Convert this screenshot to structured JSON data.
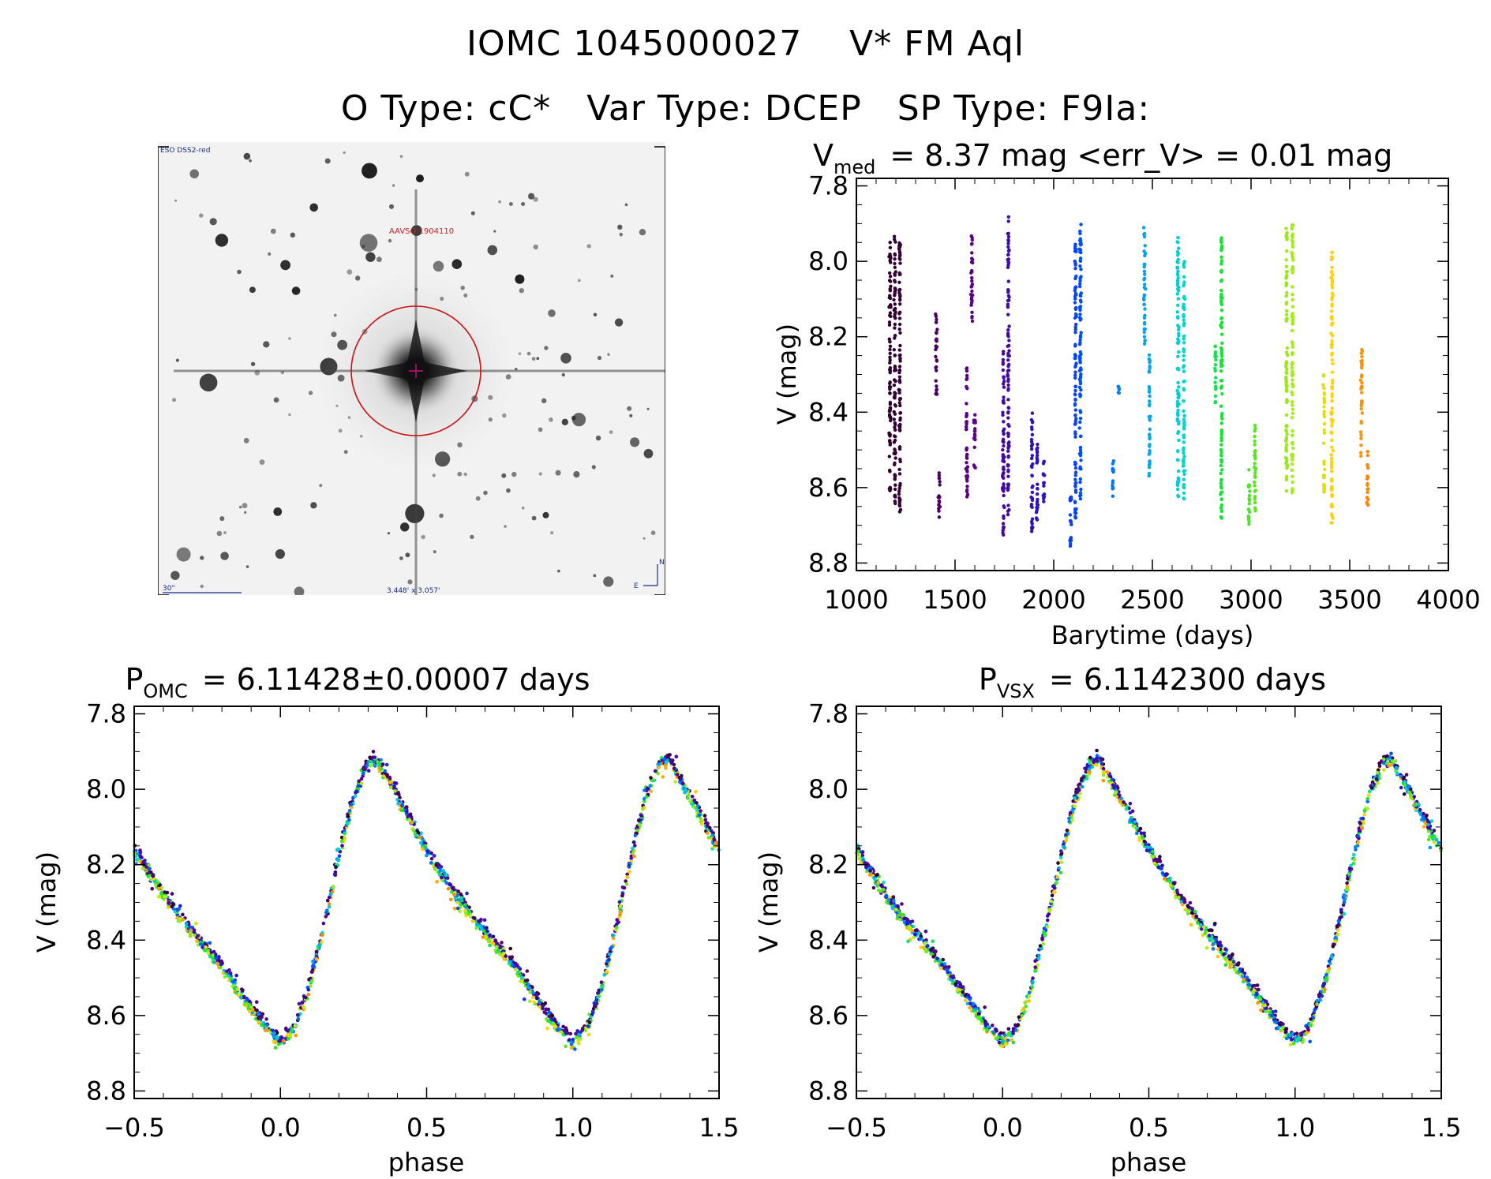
{
  "header": {
    "line1_id": "IOMC 1045000027",
    "line1_name": "V* FM Aql",
    "line2_otype": "O Type: cC*",
    "line2_vartype": "Var Type: DCEP",
    "line2_sptype": "SP Type: F9Ia:"
  },
  "finder_chart": {
    "survey_label": "ESO DSS2-red",
    "target_label": "AAVSO 1904110",
    "scale_label": "30\"",
    "fov_label": "3.448' x 3.057'",
    "north_label": "N",
    "east_label": "E"
  },
  "chart_data": [
    {
      "id": "lightcurve",
      "type": "scatter",
      "title_main": "V",
      "title_sub": "med",
      "title_rest": "= 8.37 mag <err_V> = 0.01 mag",
      "xlabel": "Barytime (days)",
      "ylabel": "V (mag)",
      "xlim": [
        1000,
        4000
      ],
      "ylim": [
        8.82,
        7.78
      ],
      "xticks": [
        1000,
        1500,
        2000,
        2500,
        3000,
        3500,
        4000
      ],
      "yticks": [
        "7.8",
        "8.0",
        "8.2",
        "8.4",
        "8.6",
        "8.8"
      ],
      "color_scale": "time-rainbow",
      "season_centers": [
        1190,
        1410,
        1570,
        1760,
        1920,
        2110,
        2300,
        2480,
        2660,
        2840,
        3010,
        3200,
        3390,
        3580
      ],
      "segments": [
        {
          "t": 1170,
          "v_min": 7.92,
          "v_max": 8.62
        },
        {
          "t": 1195,
          "v_min": 7.93,
          "v_max": 8.65
        },
        {
          "t": 1220,
          "v_min": 7.95,
          "v_max": 8.68
        },
        {
          "t": 1405,
          "v_min": 8.12,
          "v_max": 8.36
        },
        {
          "t": 1420,
          "v_min": 8.55,
          "v_max": 8.69
        },
        {
          "t": 1560,
          "v_min": 8.27,
          "v_max": 8.63
        },
        {
          "t": 1585,
          "v_min": 7.91,
          "v_max": 8.16
        },
        {
          "t": 1600,
          "v_min": 8.4,
          "v_max": 8.56
        },
        {
          "t": 1745,
          "v_min": 8.23,
          "v_max": 8.74
        },
        {
          "t": 1770,
          "v_min": 7.88,
          "v_max": 8.68
        },
        {
          "t": 1890,
          "v_min": 8.4,
          "v_max": 8.72
        },
        {
          "t": 1915,
          "v_min": 8.48,
          "v_max": 8.69
        },
        {
          "t": 1950,
          "v_min": 8.52,
          "v_max": 8.64
        },
        {
          "t": 2085,
          "v_min": 8.62,
          "v_max": 8.76
        },
        {
          "t": 2110,
          "v_min": 7.95,
          "v_max": 8.7
        },
        {
          "t": 2135,
          "v_min": 7.9,
          "v_max": 8.66
        },
        {
          "t": 2300,
          "v_min": 8.52,
          "v_max": 8.63
        },
        {
          "t": 2330,
          "v_min": 8.33,
          "v_max": 8.35
        },
        {
          "t": 2460,
          "v_min": 7.91,
          "v_max": 8.22
        },
        {
          "t": 2485,
          "v_min": 8.24,
          "v_max": 8.57
        },
        {
          "t": 2630,
          "v_min": 7.93,
          "v_max": 8.64
        },
        {
          "t": 2660,
          "v_min": 8.0,
          "v_max": 8.63
        },
        {
          "t": 2820,
          "v_min": 8.22,
          "v_max": 8.38
        },
        {
          "t": 2850,
          "v_min": 7.92,
          "v_max": 8.71
        },
        {
          "t": 2990,
          "v_min": 8.55,
          "v_max": 8.7
        },
        {
          "t": 3020,
          "v_min": 8.42,
          "v_max": 8.67
        },
        {
          "t": 3180,
          "v_min": 7.91,
          "v_max": 8.62
        },
        {
          "t": 3210,
          "v_min": 7.9,
          "v_max": 8.62
        },
        {
          "t": 3370,
          "v_min": 8.3,
          "v_max": 8.63
        },
        {
          "t": 3410,
          "v_min": 7.97,
          "v_max": 8.7
        },
        {
          "t": 3560,
          "v_min": 8.23,
          "v_max": 8.52
        },
        {
          "t": 3590,
          "v_min": 8.5,
          "v_max": 8.66
        }
      ]
    },
    {
      "id": "phase_omc",
      "type": "scatter",
      "title_main": "P",
      "title_sub": "OMC",
      "title_rest": "= 6.11428±0.00007 days",
      "xlabel": "phase",
      "ylabel": "V (mag)",
      "xlim": [
        -0.5,
        1.5
      ],
      "ylim": [
        8.82,
        7.78
      ],
      "xticks": [
        "−0.5",
        "0.0",
        "0.5",
        "1.0",
        "1.5"
      ],
      "yticks": [
        "7.8",
        "8.0",
        "8.2",
        "8.4",
        "8.6",
        "8.8"
      ],
      "curve_phase": [
        0.0,
        0.05,
        0.1,
        0.15,
        0.2,
        0.25,
        0.3,
        0.33,
        0.4,
        0.5,
        0.6,
        0.7,
        0.8,
        0.9,
        0.95,
        1.0
      ],
      "curve_mag": [
        8.67,
        8.63,
        8.52,
        8.36,
        8.18,
        8.02,
        7.93,
        7.92,
        8.02,
        8.16,
        8.28,
        8.38,
        8.47,
        8.58,
        8.63,
        8.67
      ]
    },
    {
      "id": "phase_vsx",
      "type": "scatter",
      "title_main": "P",
      "title_sub": "VSX",
      "title_rest": "= 6.1142300 days",
      "xlabel": "phase",
      "ylabel": "V (mag)",
      "xlim": [
        -0.5,
        1.5
      ],
      "ylim": [
        8.82,
        7.78
      ],
      "xticks": [
        "−0.5",
        "0.0",
        "0.5",
        "1.0",
        "1.5"
      ],
      "yticks": [
        "7.8",
        "8.0",
        "8.2",
        "8.4",
        "8.6",
        "8.8"
      ],
      "curve_phase": [
        0.0,
        0.05,
        0.1,
        0.15,
        0.2,
        0.25,
        0.3,
        0.33,
        0.4,
        0.5,
        0.6,
        0.7,
        0.8,
        0.9,
        0.95,
        1.0
      ],
      "curve_mag": [
        8.67,
        8.63,
        8.52,
        8.36,
        8.18,
        8.02,
        7.93,
        7.92,
        8.02,
        8.16,
        8.28,
        8.38,
        8.47,
        8.58,
        8.63,
        8.67
      ]
    }
  ]
}
